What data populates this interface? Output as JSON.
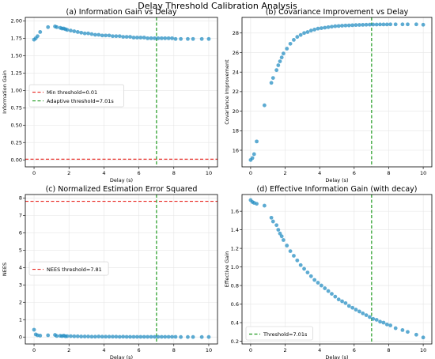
{
  "figure": {
    "title": "Delay Threshold Calibration Analysis"
  },
  "colors": {
    "point": "#1f8ac0",
    "min_line": "#e8231d",
    "adaptive_line": "#1f9a1f",
    "grid": "#e5e5e5"
  },
  "chart_data": [
    {
      "type": "scatter",
      "title": "(a) Information Gain vs Delay",
      "xlabel": "Delay (s)",
      "ylabel": "Information Gain",
      "xlim": [
        -0.5,
        10.5
      ],
      "ylim": [
        -0.1,
        2.05
      ],
      "xticks": [
        0,
        2,
        4,
        6,
        8,
        10
      ],
      "yticks": [
        0.0,
        0.25,
        0.5,
        0.75,
        1.0,
        1.25,
        1.5,
        1.75,
        2.0
      ],
      "ytick_labels": [
        "0.00",
        "0.25",
        "0.50",
        "0.75",
        "1.00",
        "1.25",
        "1.50",
        "1.75",
        "2.00"
      ],
      "grid": true,
      "legend_position": "center-left",
      "hlines": [
        {
          "y": 0.01,
          "label": "Min threshold=0.01",
          "color_key": "min_line"
        }
      ],
      "vlines": [
        {
          "x": 7.01,
          "label": "Adaptive threshold=7.01s",
          "color_key": "adaptive_line"
        }
      ],
      "x": [
        0.0,
        0.1,
        0.2,
        0.35,
        0.8,
        1.2,
        1.3,
        1.5,
        1.6,
        1.7,
        1.8,
        1.9,
        2.1,
        2.3,
        2.5,
        2.7,
        2.9,
        3.1,
        3.3,
        3.5,
        3.7,
        3.9,
        4.1,
        4.3,
        4.5,
        4.7,
        4.9,
        5.1,
        5.3,
        5.5,
        5.7,
        5.9,
        6.1,
        6.3,
        6.5,
        6.7,
        6.9,
        7.1,
        7.3,
        7.5,
        7.7,
        7.9,
        8.1,
        8.4,
        8.8,
        9.1,
        9.6,
        10.0
      ],
      "y": [
        1.73,
        1.75,
        1.78,
        1.84,
        1.91,
        1.92,
        1.91,
        1.9,
        1.89,
        1.89,
        1.88,
        1.87,
        1.86,
        1.85,
        1.84,
        1.83,
        1.82,
        1.82,
        1.81,
        1.8,
        1.8,
        1.79,
        1.79,
        1.79,
        1.78,
        1.78,
        1.78,
        1.77,
        1.77,
        1.77,
        1.76,
        1.76,
        1.76,
        1.76,
        1.75,
        1.75,
        1.75,
        1.75,
        1.75,
        1.75,
        1.75,
        1.75,
        1.74,
        1.74,
        1.74,
        1.74,
        1.74,
        1.74
      ]
    },
    {
      "type": "scatter",
      "title": "(b) Covariance Improvement vs Delay",
      "xlabel": "Delay (s)",
      "ylabel": "Covariance Improvement",
      "xlim": [
        -0.5,
        10.5
      ],
      "ylim": [
        14.3,
        29.6
      ],
      "xticks": [
        0,
        2,
        4,
        6,
        8,
        10
      ],
      "yticks": [
        16,
        18,
        20,
        22,
        24,
        26,
        28
      ],
      "ytick_labels": [
        "16",
        "18",
        "20",
        "22",
        "24",
        "26",
        "28"
      ],
      "grid": true,
      "vlines": [
        {
          "x": 7.01,
          "color_key": "adaptive_line"
        }
      ],
      "x": [
        0.0,
        0.1,
        0.2,
        0.35,
        0.8,
        1.2,
        1.3,
        1.5,
        1.6,
        1.7,
        1.8,
        1.9,
        2.1,
        2.3,
        2.5,
        2.7,
        2.9,
        3.1,
        3.3,
        3.5,
        3.7,
        3.9,
        4.1,
        4.3,
        4.5,
        4.7,
        4.9,
        5.1,
        5.3,
        5.5,
        5.7,
        5.9,
        6.1,
        6.3,
        6.5,
        6.7,
        6.9,
        7.1,
        7.3,
        7.5,
        7.7,
        7.9,
        8.1,
        8.4,
        8.8,
        9.1,
        9.6,
        10.0
      ],
      "y": [
        15.0,
        15.2,
        15.6,
        16.9,
        20.6,
        22.9,
        23.4,
        24.2,
        24.7,
        25.1,
        25.5,
        25.9,
        26.4,
        26.9,
        27.3,
        27.6,
        27.8,
        28.0,
        28.1,
        28.25,
        28.35,
        28.45,
        28.5,
        28.55,
        28.6,
        28.65,
        28.7,
        28.72,
        28.75,
        28.77,
        28.78,
        28.8,
        28.82,
        28.83,
        28.84,
        28.85,
        28.86,
        28.87,
        28.87,
        28.88,
        28.88,
        28.88,
        28.89,
        28.89,
        28.89,
        28.89,
        28.89,
        28.85
      ]
    },
    {
      "type": "scatter",
      "title": "(c) Normalized Estimation Error Squared",
      "xlabel": "Delay (s)",
      "ylabel": "NEES",
      "xlim": [
        -0.5,
        10.5
      ],
      "ylim": [
        -0.4,
        8.2
      ],
      "xticks": [
        0,
        2,
        4,
        6,
        8,
        10
      ],
      "yticks": [
        0,
        1,
        2,
        3,
        4,
        5,
        6,
        7,
        8
      ],
      "ytick_labels": [
        "0",
        "1",
        "2",
        "3",
        "4",
        "5",
        "6",
        "7",
        "8"
      ],
      "grid": true,
      "legend_position": "center-left",
      "hlines": [
        {
          "y": 7.81,
          "label": "NEES threshold=7.81",
          "color_key": "min_line"
        }
      ],
      "vlines": [
        {
          "x": 7.01,
          "color_key": "adaptive_line"
        }
      ],
      "x": [
        0.0,
        0.1,
        0.2,
        0.35,
        0.8,
        1.2,
        1.3,
        1.5,
        1.6,
        1.7,
        1.8,
        1.9,
        2.1,
        2.3,
        2.5,
        2.7,
        2.9,
        3.1,
        3.3,
        3.5,
        3.7,
        3.9,
        4.1,
        4.3,
        4.5,
        4.7,
        4.9,
        5.1,
        5.3,
        5.5,
        5.7,
        5.9,
        6.1,
        6.3,
        6.5,
        6.7,
        6.9,
        7.1,
        7.3,
        7.5,
        7.7,
        7.9,
        8.1,
        8.4,
        8.8,
        9.1,
        9.6,
        10.0
      ],
      "y": [
        0.42,
        0.15,
        0.1,
        0.08,
        0.1,
        0.12,
        0.06,
        0.07,
        0.05,
        0.08,
        0.04,
        0.05,
        0.05,
        0.04,
        0.04,
        0.03,
        0.03,
        0.03,
        0.02,
        0.02,
        0.03,
        0.02,
        0.02,
        0.02,
        0.02,
        0.02,
        0.01,
        0.02,
        0.01,
        0.01,
        0.01,
        0.01,
        0.01,
        0.01,
        0.01,
        0.01,
        0.01,
        0.01,
        0.01,
        0.01,
        0.01,
        0.01,
        0.01,
        0.0,
        0.0,
        0.0,
        0.0,
        0.0
      ]
    },
    {
      "type": "scatter",
      "title": "(d) Effective Information Gain (with decay)",
      "xlabel": "Delay (s)",
      "ylabel": "Effective Gain",
      "xlim": [
        -0.5,
        10.5
      ],
      "ylim": [
        0.17,
        1.78
      ],
      "xticks": [
        0,
        2,
        4,
        6,
        8,
        10
      ],
      "yticks": [
        0.2,
        0.4,
        0.6,
        0.8,
        1.0,
        1.2,
        1.4,
        1.6
      ],
      "ytick_labels": [
        "0.2",
        "0.4",
        "0.6",
        "0.8",
        "1.0",
        "1.2",
        "1.4",
        "1.6"
      ],
      "grid": true,
      "legend_position": "bottom-left",
      "vlines": [
        {
          "x": 7.01,
          "label": "Threshold=7.01s",
          "color_key": "adaptive_line"
        }
      ],
      "x": [
        0.0,
        0.1,
        0.2,
        0.35,
        0.8,
        1.2,
        1.3,
        1.5,
        1.6,
        1.7,
        1.8,
        1.9,
        2.1,
        2.3,
        2.5,
        2.7,
        2.9,
        3.1,
        3.3,
        3.5,
        3.7,
        3.9,
        4.1,
        4.3,
        4.5,
        4.7,
        4.9,
        5.1,
        5.3,
        5.5,
        5.7,
        5.9,
        6.1,
        6.3,
        6.5,
        6.7,
        6.9,
        7.1,
        7.3,
        7.5,
        7.7,
        7.9,
        8.1,
        8.4,
        8.8,
        9.1,
        9.6,
        10.0
      ],
      "y": [
        1.72,
        1.7,
        1.69,
        1.68,
        1.66,
        1.53,
        1.49,
        1.45,
        1.4,
        1.36,
        1.33,
        1.29,
        1.23,
        1.17,
        1.12,
        1.07,
        1.02,
        0.98,
        0.94,
        0.9,
        0.86,
        0.83,
        0.8,
        0.77,
        0.74,
        0.71,
        0.68,
        0.65,
        0.63,
        0.61,
        0.58,
        0.56,
        0.54,
        0.52,
        0.5,
        0.48,
        0.46,
        0.44,
        0.43,
        0.41,
        0.4,
        0.38,
        0.37,
        0.34,
        0.32,
        0.3,
        0.27,
        0.24
      ]
    }
  ]
}
